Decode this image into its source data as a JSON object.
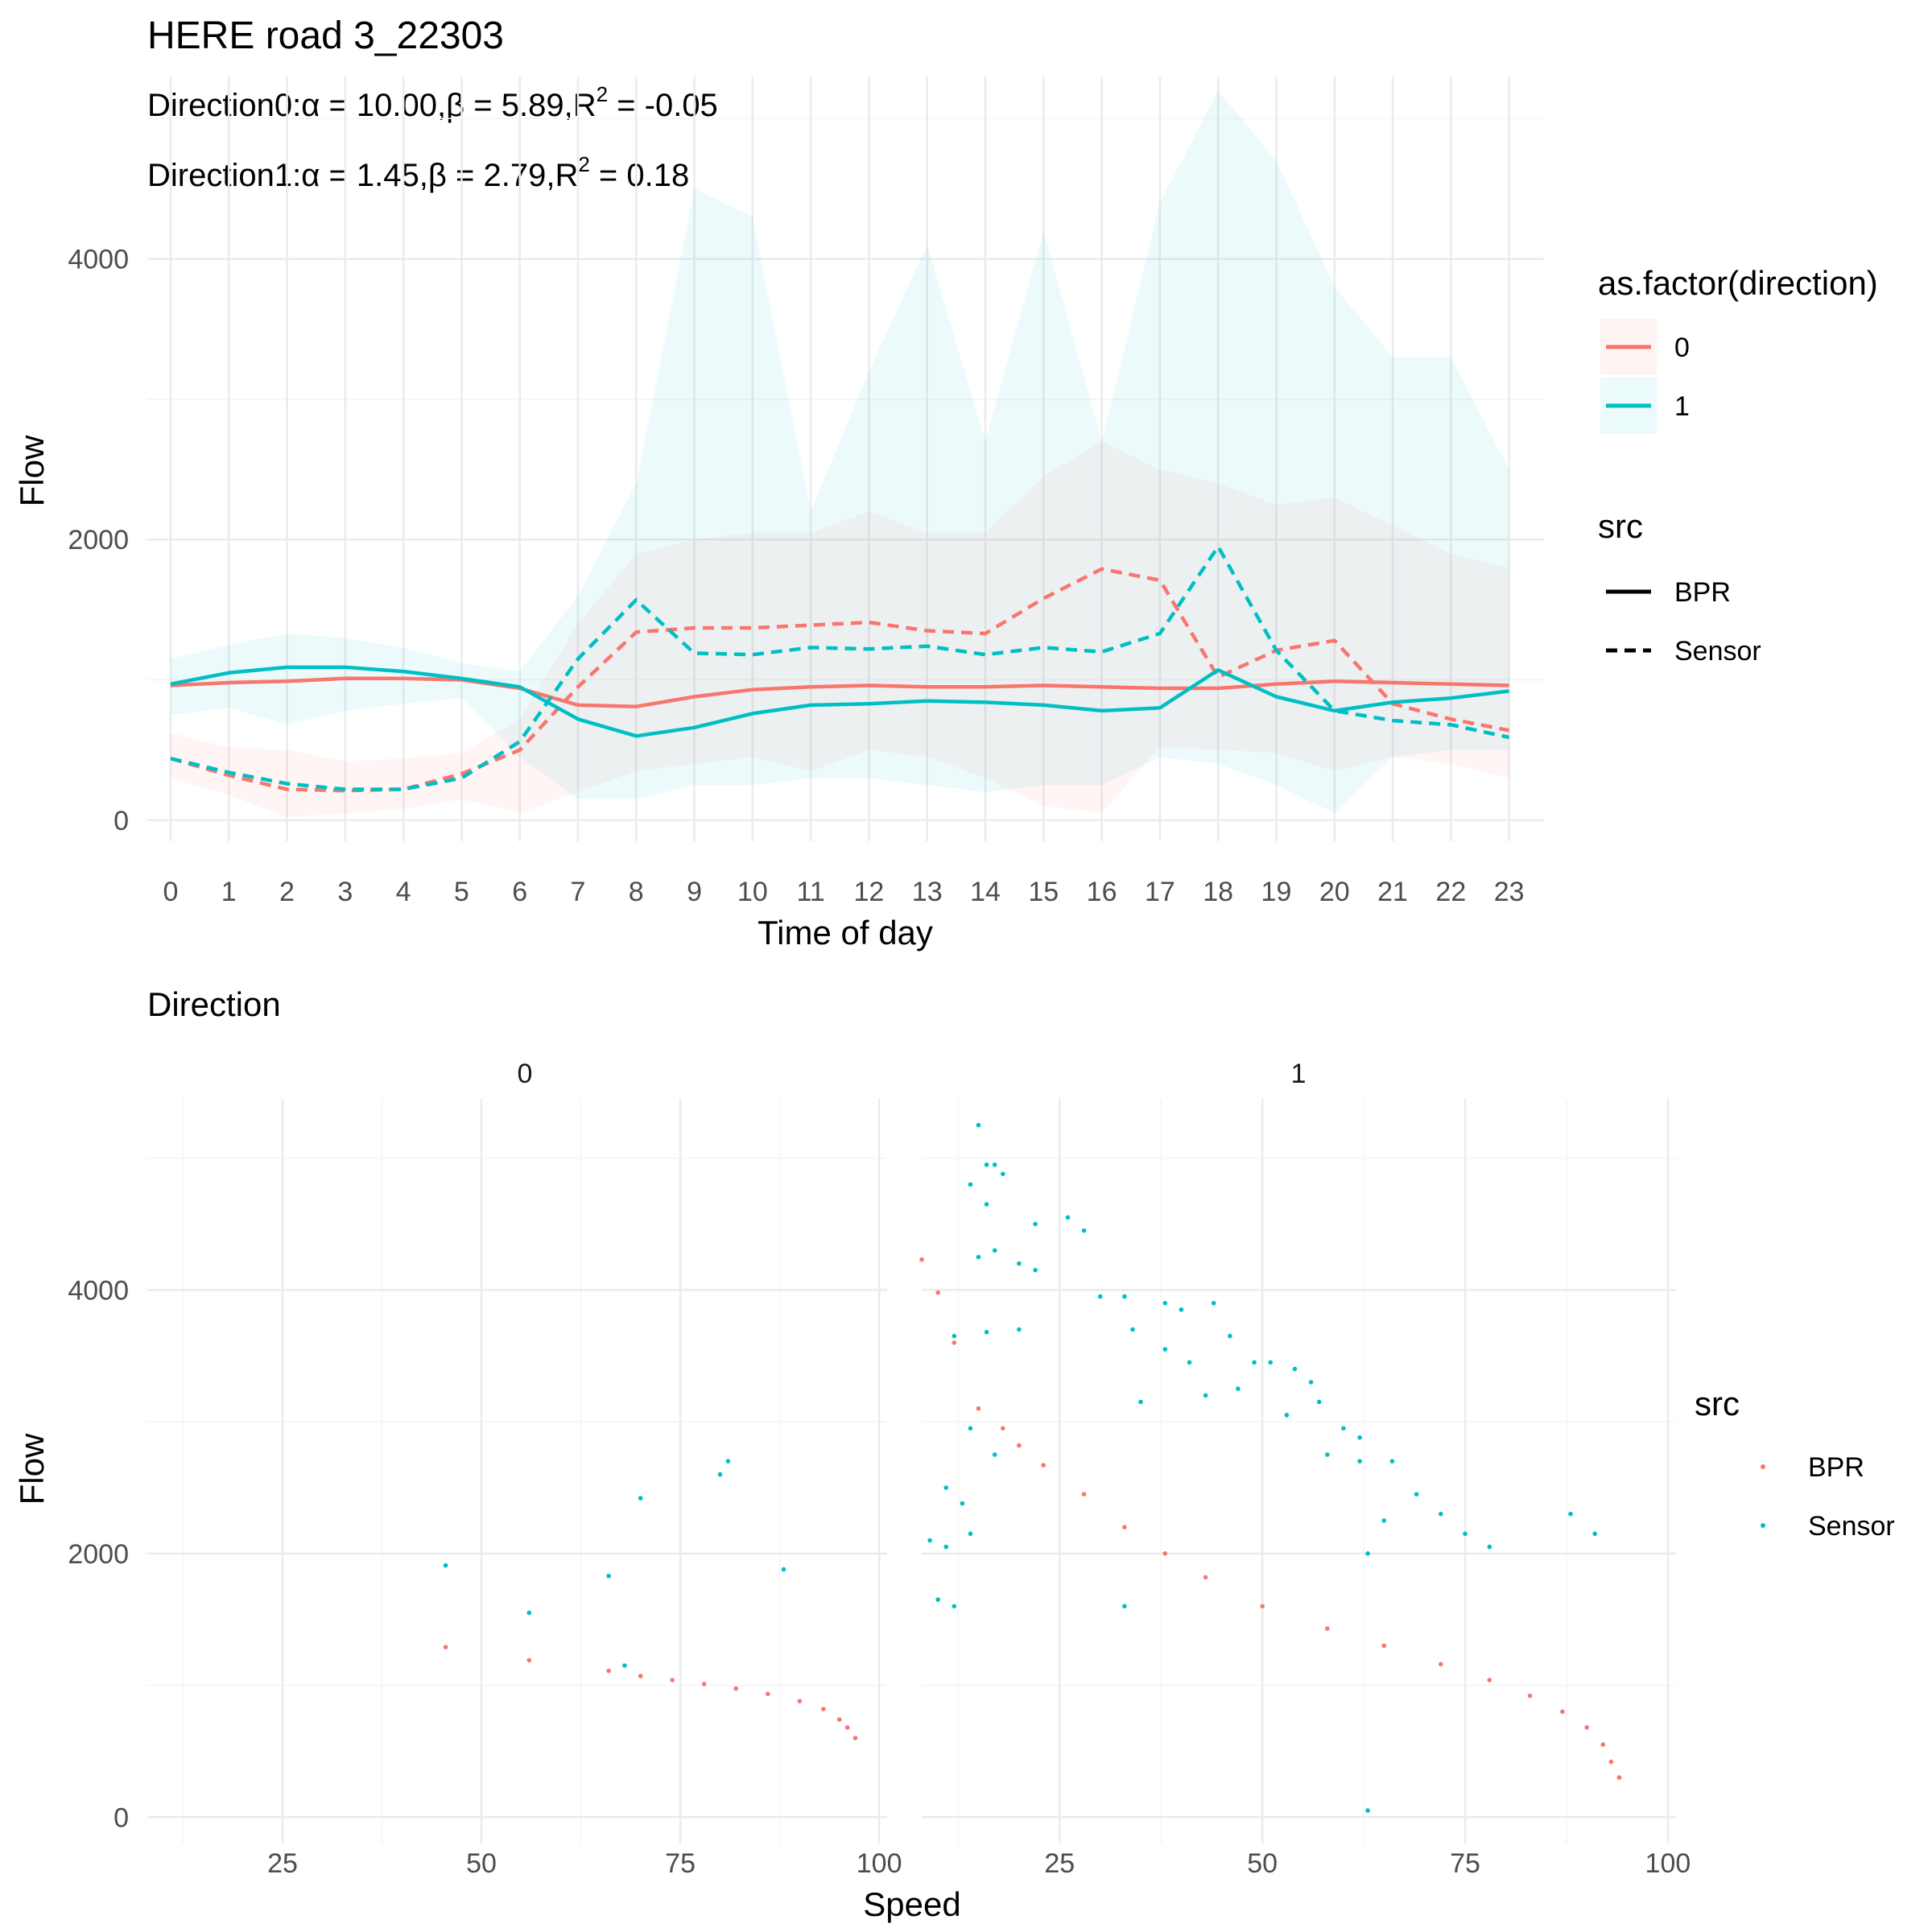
{
  "top_title": "HERE road 3_22303",
  "subtitle_1": {
    "prefix": "Direction0:",
    "alpha": "α",
    "eq1": " = 10.00,",
    "beta": "β",
    "eq2": " = 5.89,R",
    "sup": "2",
    "eq3": " = -0.05"
  },
  "subtitle_2": {
    "prefix": "Direction1:",
    "alpha": "α",
    "eq1": " = 1.45,",
    "beta": "β",
    "eq2": " = 2.79,R",
    "sup": "2",
    "eq3": " = 0.18"
  },
  "colors": {
    "dir0": "#f8766d",
    "dir1": "#00bfc4",
    "grid": "#ebebeb",
    "grid_minor": "#f4f4f4"
  },
  "legend_top": {
    "direction_title": "as.factor(direction)",
    "direction_items": [
      "0",
      "1"
    ],
    "src_title": "src",
    "src_items": [
      "BPR",
      "Sensor"
    ]
  },
  "legend_bottom": {
    "title": "src",
    "items": [
      "BPR",
      "Sensor"
    ]
  },
  "bottom_title": "Direction",
  "chart_data": [
    {
      "type": "line",
      "xlabel": "Time of day",
      "ylabel": "Flow",
      "x": [
        0,
        1,
        2,
        3,
        4,
        5,
        6,
        7,
        8,
        9,
        10,
        11,
        12,
        13,
        14,
        15,
        16,
        17,
        18,
        19,
        20,
        21,
        22,
        23
      ],
      "xlim": [
        -0.4,
        23.6
      ],
      "ylim": [
        -150,
        5300
      ],
      "yticks": [
        0,
        2000,
        4000
      ],
      "grid": true,
      "legend_position": "right",
      "series": [
        {
          "name": "0",
          "src": "BPR",
          "values": [
            960,
            980,
            990,
            1010,
            1010,
            1000,
            940,
            820,
            810,
            880,
            930,
            950,
            960,
            950,
            950,
            960,
            950,
            940,
            940,
            970,
            990,
            980,
            970,
            960
          ]
        },
        {
          "name": "0",
          "src": "Sensor",
          "values": [
            440,
            320,
            220,
            210,
            220,
            330,
            500,
            950,
            1340,
            1370,
            1370,
            1390,
            1410,
            1350,
            1330,
            1580,
            1790,
            1710,
            1020,
            1210,
            1280,
            830,
            720,
            640
          ]
        },
        {
          "name": "1",
          "src": "BPR",
          "values": [
            970,
            1050,
            1090,
            1090,
            1060,
            1010,
            950,
            720,
            600,
            660,
            760,
            820,
            830,
            850,
            840,
            820,
            780,
            800,
            1070,
            880,
            780,
            840,
            870,
            920
          ]
        },
        {
          "name": "1",
          "src": "Sensor",
          "values": [
            440,
            340,
            260,
            220,
            220,
            300,
            560,
            1150,
            1570,
            1190,
            1180,
            1230,
            1220,
            1240,
            1180,
            1230,
            1200,
            1330,
            1950,
            1210,
            780,
            710,
            680,
            590
          ]
        }
      ],
      "ribbons": [
        {
          "name": "0",
          "upper": [
            620,
            520,
            500,
            420,
            440,
            480,
            720,
            1400,
            1900,
            2000,
            2050,
            2050,
            2200,
            2050,
            2050,
            2450,
            2700,
            2500,
            2400,
            2250,
            2300,
            2100,
            1900,
            1800
          ],
          "lower": [
            300,
            180,
            20,
            50,
            80,
            150,
            50,
            200,
            350,
            400,
            450,
            350,
            500,
            450,
            300,
            100,
            50,
            520,
            500,
            480,
            350,
            450,
            400,
            300
          ]
        },
        {
          "name": "1",
          "upper": [
            1150,
            1250,
            1330,
            1300,
            1230,
            1120,
            1060,
            1600,
            2400,
            4500,
            4300,
            2200,
            3200,
            4100,
            2700,
            4200,
            2700,
            4400,
            5200,
            4700,
            3800,
            3300,
            3300,
            2500
          ],
          "lower": [
            750,
            800,
            680,
            780,
            830,
            870,
            450,
            150,
            150,
            250,
            250,
            300,
            300,
            250,
            200,
            250,
            250,
            450,
            400,
            250,
            50,
            450,
            500,
            500
          ]
        }
      ]
    },
    {
      "type": "scatter",
      "panels": [
        "0",
        "1"
      ],
      "xlabel": "Speed",
      "ylabel": "Flow",
      "xlim": [
        8,
        101
      ],
      "ylim": [
        -200,
        5450
      ],
      "xticks": [
        25,
        50,
        75,
        100
      ],
      "yticks": [
        0,
        2000,
        4000
      ],
      "grid": true,
      "legend_position": "right",
      "series": [
        {
          "name": "BPR",
          "panel": "0",
          "values": [
            [
              45.5,
              1290
            ],
            [
              56,
              1190
            ],
            [
              66,
              1110
            ],
            [
              70,
              1070
            ],
            [
              74,
              1040
            ],
            [
              78,
              1010
            ],
            [
              82,
              975
            ],
            [
              86,
              935
            ],
            [
              90,
              880
            ],
            [
              93,
              820
            ],
            [
              95,
              740
            ],
            [
              96,
              680
            ],
            [
              97,
              600
            ]
          ]
        },
        {
          "name": "Sensor",
          "panel": "0",
          "values": [
            [
              45.5,
              1910
            ],
            [
              56,
              1550
            ],
            [
              66,
              1830
            ],
            [
              68,
              1150
            ],
            [
              70,
              2420
            ],
            [
              81,
              2700
            ],
            [
              80,
              2600
            ],
            [
              88,
              1880
            ]
          ]
        },
        {
          "name": "BPR",
          "panel": "1",
          "values": [
            [
              8,
              4230
            ],
            [
              10,
              3980
            ],
            [
              12,
              3600
            ],
            [
              15,
              3100
            ],
            [
              18,
              2950
            ],
            [
              20,
              2820
            ],
            [
              23,
              2670
            ],
            [
              28,
              2450
            ],
            [
              33,
              2200
            ],
            [
              38,
              2000
            ],
            [
              43,
              1820
            ],
            [
              50,
              1600
            ],
            [
              58,
              1430
            ],
            [
              65,
              1300
            ],
            [
              72,
              1160
            ],
            [
              78,
              1040
            ],
            [
              83,
              920
            ],
            [
              87,
              800
            ],
            [
              90,
              680
            ],
            [
              92,
              550
            ],
            [
              93,
              420
            ],
            [
              94,
              300
            ]
          ]
        },
        {
          "name": "Sensor",
          "panel": "1",
          "values": [
            [
              15,
              5250
            ],
            [
              16,
              4950
            ],
            [
              17,
              4950
            ],
            [
              18,
              4880
            ],
            [
              14,
              4800
            ],
            [
              16,
              4650
            ],
            [
              22,
              4500
            ],
            [
              26,
              4550
            ],
            [
              28,
              4450
            ],
            [
              15,
              4250
            ],
            [
              17,
              4300
            ],
            [
              20,
              4200
            ],
            [
              22,
              4150
            ],
            [
              12,
              3650
            ],
            [
              16,
              3680
            ],
            [
              20,
              3700
            ],
            [
              30,
              3950
            ],
            [
              33,
              3950
            ],
            [
              38,
              3900
            ],
            [
              40,
              3850
            ],
            [
              44,
              3900
            ],
            [
              34,
              3700
            ],
            [
              38,
              3550
            ],
            [
              41,
              3450
            ],
            [
              46,
              3650
            ],
            [
              49,
              3450
            ],
            [
              51,
              3450
            ],
            [
              54,
              3400
            ],
            [
              56,
              3300
            ],
            [
              47,
              3250
            ],
            [
              43,
              3200
            ],
            [
              35,
              3150
            ],
            [
              53,
              3050
            ],
            [
              57,
              3150
            ],
            [
              60,
              2950
            ],
            [
              62,
              2880
            ],
            [
              58,
              2750
            ],
            [
              62,
              2700
            ],
            [
              66,
              2700
            ],
            [
              11,
              2500
            ],
            [
              13,
              2380
            ],
            [
              17,
              2750
            ],
            [
              14,
              2950
            ],
            [
              9,
              2100
            ],
            [
              11,
              2050
            ],
            [
              14,
              2150
            ],
            [
              10,
              1650
            ],
            [
              12,
              1600
            ],
            [
              33,
              1600
            ],
            [
              63,
              2000
            ],
            [
              65,
              2250
            ],
            [
              69,
              2450
            ],
            [
              72,
              2300
            ],
            [
              75,
              2150
            ],
            [
              78,
              2050
            ],
            [
              88,
              2300
            ],
            [
              91,
              2150
            ],
            [
              63,
              50
            ]
          ]
        }
      ]
    }
  ]
}
